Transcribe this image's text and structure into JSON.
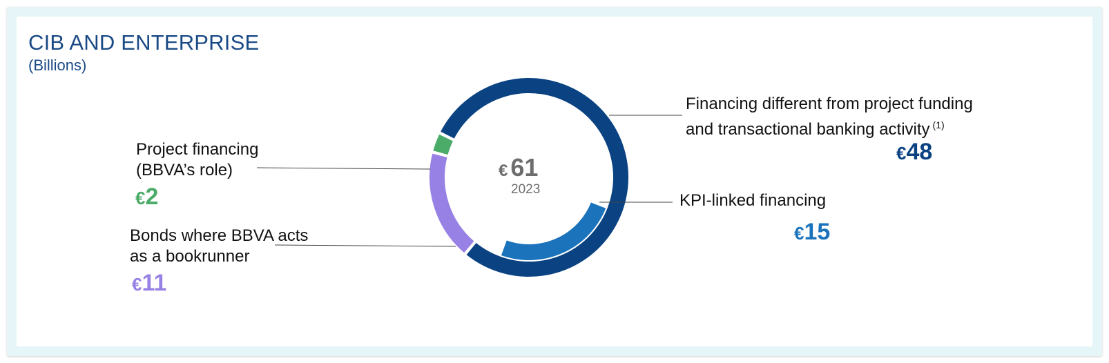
{
  "title": "CIB AND ENTERPRISE",
  "subtitle": "(Billions)",
  "center": {
    "currency": "€",
    "total": "61",
    "year": "2023"
  },
  "colors": {
    "title": "#1a4a86",
    "financing_other": "#0a4282",
    "kpi_linked": "#1a73bb",
    "bonds": "#9781e4",
    "project": "#4bab68"
  },
  "labels": {
    "financing_other": {
      "line1": "Financing different from project funding",
      "line2": "and transactional banking activity",
      "note": "(1)",
      "currency": "€",
      "value": "48"
    },
    "kpi_linked": {
      "line1": "KPI-linked financing",
      "currency": "€",
      "value": "15"
    },
    "project": {
      "line1": "Project financing",
      "line2": "(BBVA’s role)",
      "currency": "€",
      "value": "2"
    },
    "bonds": {
      "line1": "Bonds where BBVA acts",
      "line2": "as a bookrunner",
      "currency": "€",
      "value": "11"
    }
  },
  "chart_data": {
    "type": "pie",
    "subtype": "donut",
    "total": 61,
    "unit": "€ billions",
    "slices": [
      {
        "label": "Financing different from project funding and transactional banking activity (1)",
        "value": 48,
        "color": "#0a4282"
      },
      {
        "label": "Bonds where BBVA acts as a bookrunner",
        "value": 11,
        "color": "#9781e4"
      },
      {
        "label": "Project financing (BBVA’s role)",
        "value": 2,
        "color": "#4bab68"
      }
    ],
    "nested_slices": [
      {
        "label": "KPI-linked financing",
        "value": 15,
        "parent": "Financing different from project funding and transactional banking activity (1)",
        "color": "#1a73bb"
      }
    ]
  }
}
